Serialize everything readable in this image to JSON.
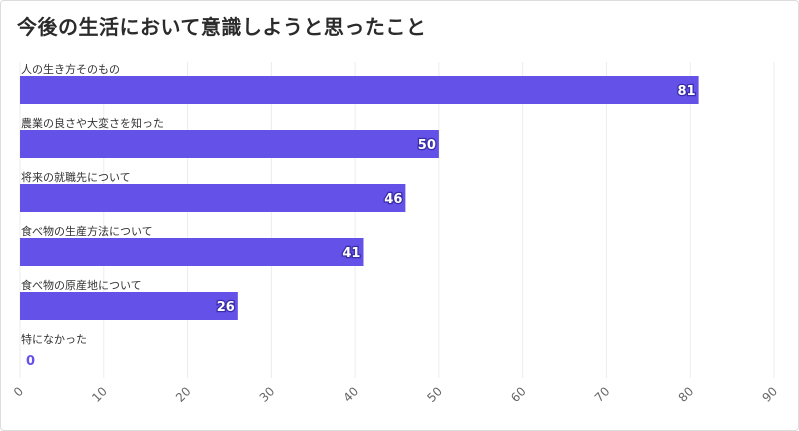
{
  "title": "今後の生活において意識しようと思ったこと",
  "colors": {
    "bar": "#6351e8",
    "grid": "#ececec",
    "label_text": "#333333",
    "tick_text": "#666666"
  },
  "chart_data": {
    "type": "bar",
    "orientation": "horizontal",
    "title": "今後の生活において意識しようと思ったこと",
    "categories": [
      "人の生き方そのもの",
      "農業の良さや大変さを知った",
      "将来の就職先について",
      "食べ物の生産方法について",
      "食べ物の原産地について",
      "特になかった"
    ],
    "values": [
      81,
      50,
      46,
      41,
      26,
      0
    ],
    "xlim": [
      0,
      90
    ],
    "xticks": [
      0,
      10,
      20,
      30,
      40,
      50,
      60,
      70,
      80,
      90
    ],
    "grid": true,
    "data_labels": true
  }
}
